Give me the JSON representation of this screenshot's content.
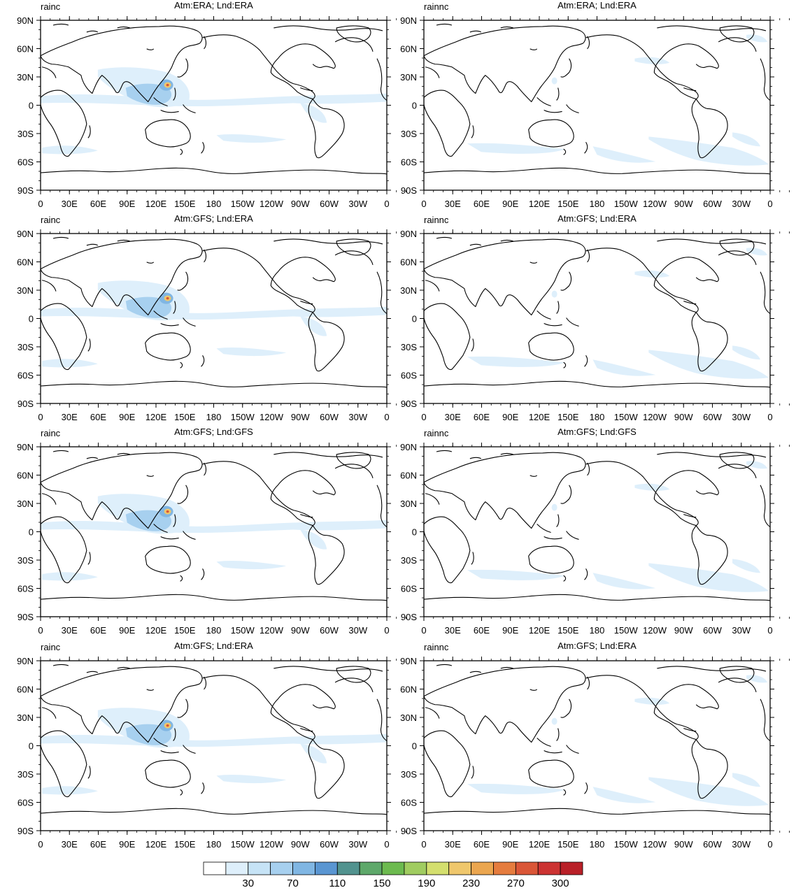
{
  "panels": [
    {
      "variable": "rainc",
      "title": "Atm:ERA; Lnd:ERA"
    },
    {
      "variable": "rainnc",
      "title": "Atm:ERA; Lnd:ERA"
    },
    {
      "variable": "rainc",
      "title": "Atm:GFS; Lnd:ERA"
    },
    {
      "variable": "rainnc",
      "title": "Atm:GFS; Lnd:ERA"
    },
    {
      "variable": "rainc",
      "title": "Atm:GFS; Lnd:GFS"
    },
    {
      "variable": "rainnc",
      "title": "Atm:GFS; Lnd:GFS"
    },
    {
      "variable": "rainc",
      "title": "Atm:GFS; Lnd:ERA"
    },
    {
      "variable": "rainnc",
      "title": "Atm:GFS; Lnd:ERA"
    }
  ],
  "axes": {
    "lat_ticks": [
      "90N",
      "60N",
      "30N",
      "0",
      "30S",
      "60S",
      "90S"
    ],
    "lon_ticks": [
      "0",
      "30E",
      "60E",
      "90E",
      "120E",
      "150E",
      "180",
      "150W",
      "120W",
      "90W",
      "60W",
      "30W",
      "0"
    ]
  },
  "colorbar": {
    "labels": [
      "30",
      "70",
      "110",
      "150",
      "190",
      "230",
      "270",
      "300"
    ],
    "colors": [
      "#ffffff",
      "#deeffb",
      "#c6e3f6",
      "#a7d0ef",
      "#80b6e3",
      "#5a96d2",
      "#52938f",
      "#5ea86a",
      "#6cba4f",
      "#a0cc60",
      "#d4df6e",
      "#efc76c",
      "#eba64f",
      "#e57c3e",
      "#da5637",
      "#cc3332",
      "#b92028"
    ]
  }
}
